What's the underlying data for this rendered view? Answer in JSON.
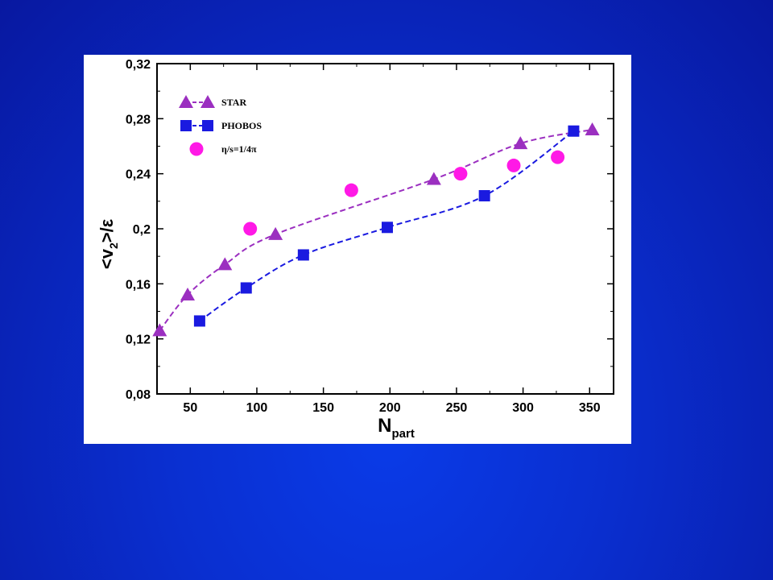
{
  "slide": {
    "background_color": "#0a2bc8",
    "panel_color": "#ffffff"
  },
  "chart_data": {
    "type": "scatter",
    "xlabel": "N",
    "xlabel_sub": "part",
    "ylabel_parts": [
      "<v",
      "2",
      ">/ε"
    ],
    "xlim": [
      25,
      368
    ],
    "ylim": [
      0.08,
      0.32
    ],
    "x_ticks": [
      50,
      100,
      150,
      200,
      250,
      300,
      350
    ],
    "x_tick_labels": [
      "50",
      "100",
      "150",
      "200",
      "250",
      "300",
      "350"
    ],
    "y_ticks": [
      0.08,
      0.12,
      0.16,
      0.2,
      0.24,
      0.28,
      0.32
    ],
    "y_tick_labels": [
      "0,08",
      "0,12",
      "0,16",
      "0,2",
      "0,24",
      "0,28",
      "0,32"
    ],
    "grid": false,
    "legend_position": "top-left",
    "series": [
      {
        "name": "STAR",
        "marker": "triangle",
        "color": "#9b2fc0",
        "line": "dashed",
        "x": [
          27,
          48,
          76,
          114,
          233,
          298,
          352
        ],
        "y": [
          0.126,
          0.152,
          0.174,
          0.196,
          0.236,
          0.262,
          0.272
        ]
      },
      {
        "name": "PHOBOS",
        "marker": "square",
        "color": "#1a1ae0",
        "line": "dashed",
        "x": [
          57,
          92,
          135,
          198,
          271,
          338
        ],
        "y": [
          0.133,
          0.157,
          0.181,
          0.201,
          0.224,
          0.271
        ]
      },
      {
        "name": "η/s=1/4π",
        "marker": "circle",
        "color": "#ff19e6",
        "line": "none",
        "x": [
          95,
          171,
          253,
          293,
          326
        ],
        "y": [
          0.2,
          0.228,
          0.24,
          0.246,
          0.252
        ]
      }
    ]
  }
}
